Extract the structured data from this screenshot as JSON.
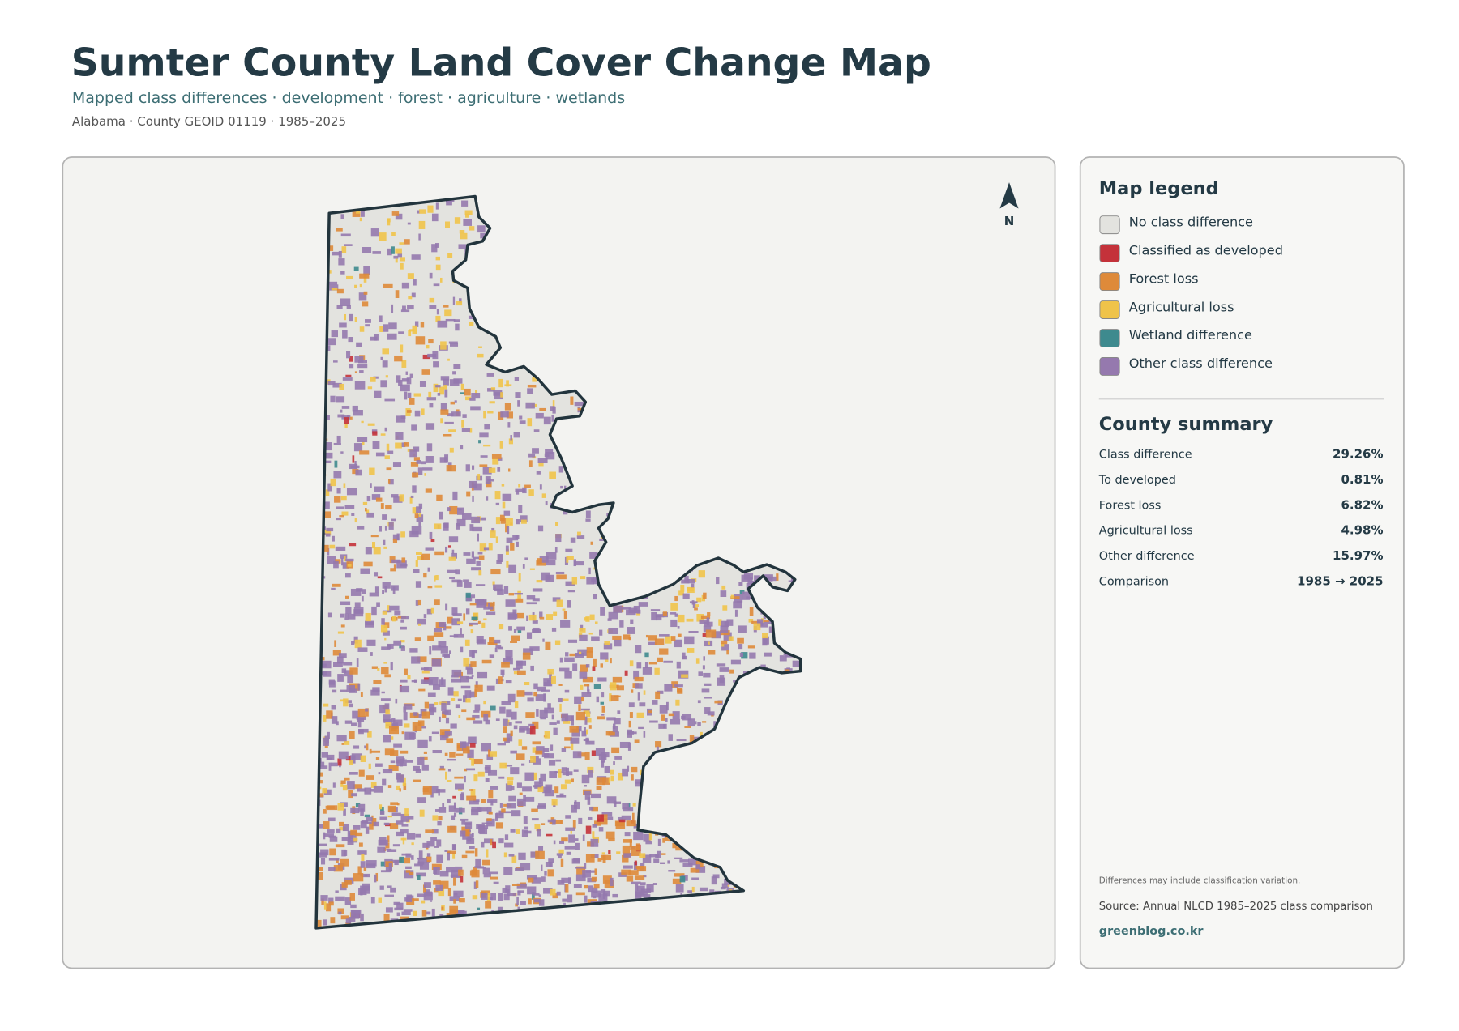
{
  "header": {
    "title": "Sumter County Land Cover Change Map",
    "subtitle": "Mapped class differences · development · forest · agriculture · wetlands",
    "meta": "Alabama · County GEOID 01119 · 1985–2025"
  },
  "map": {
    "north_label": "N"
  },
  "legend": {
    "title": "Map legend",
    "items": [
      {
        "label": "No class difference",
        "color": "#e3e3df"
      },
      {
        "label": "Classified as developed",
        "color": "#c4323a"
      },
      {
        "label": "Forest loss",
        "color": "#de8a3a"
      },
      {
        "label": "Agricultural loss",
        "color": "#efc34a"
      },
      {
        "label": "Wetland difference",
        "color": "#3e8a8e"
      },
      {
        "label": "Other class difference",
        "color": "#9579ae"
      }
    ]
  },
  "summary": {
    "title": "County summary",
    "rows": [
      {
        "label": "Class difference",
        "value": "29.26%"
      },
      {
        "label": "To developed",
        "value": "0.81%"
      },
      {
        "label": "Forest loss",
        "value": "6.82%"
      },
      {
        "label": "Agricultural loss",
        "value": "4.98%"
      },
      {
        "label": "Other difference",
        "value": "15.97%"
      },
      {
        "label": "Comparison",
        "value": "1985 → 2025"
      }
    ]
  },
  "footer": {
    "note": "Differences may include classification variation.",
    "source": "Source: Annual NLCD 1985–2025 class comparison",
    "credit": "greenblog.co.kr"
  }
}
